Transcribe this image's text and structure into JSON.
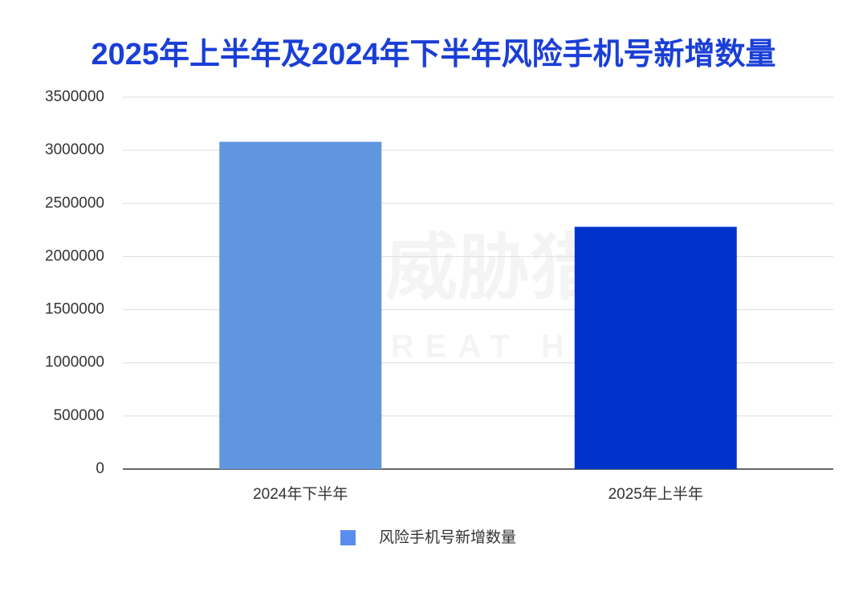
{
  "chart_data": {
    "type": "bar",
    "title": "2025年上半年及2024年下半年风险手机号新增数量",
    "categories": [
      "2024年下半年",
      "2025年上半年"
    ],
    "series": [
      {
        "name": "风险手机号新增数量",
        "color": "#5b8def",
        "values": [
          3080000,
          2280000
        ]
      }
    ],
    "bar_colors": [
      "#6096e0",
      "#0033cc"
    ],
    "ylim": [
      0,
      3500000
    ],
    "yticks": [
      0,
      500000,
      1000000,
      1500000,
      2000000,
      2500000,
      3000000,
      3500000
    ],
    "grid": true,
    "legend": "bottom",
    "watermark": [
      "威胁猎人",
      "THREAT HUNTER"
    ]
  }
}
